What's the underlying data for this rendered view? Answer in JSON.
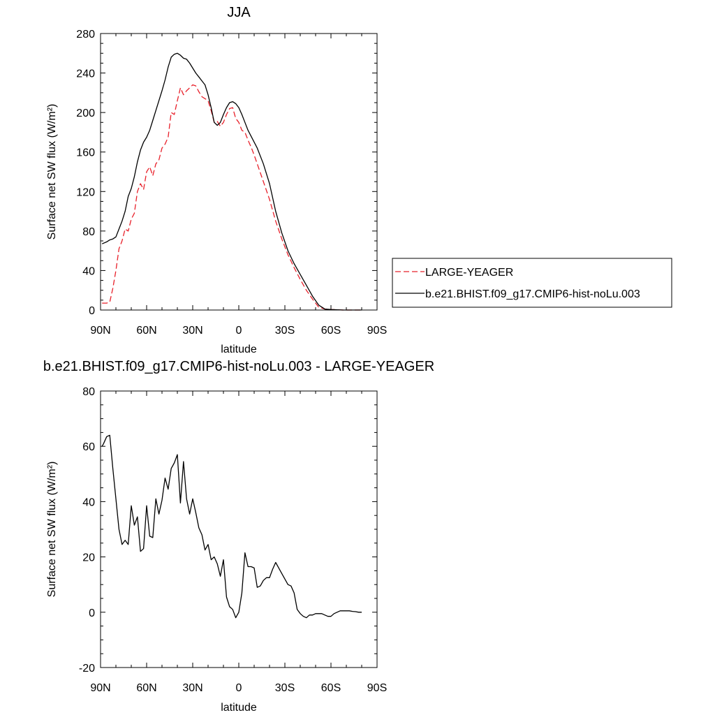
{
  "chart_data": [
    {
      "type": "line",
      "title": "JJA",
      "xlabel": "latitude",
      "ylabel": "Surface net SW flux (W/m²)",
      "xlim": [
        90,
        -90
      ],
      "ylim": [
        0,
        280
      ],
      "xticks": [
        90,
        60,
        30,
        0,
        -30,
        -60,
        -90
      ],
      "xtick_labels": [
        "90N",
        "60N",
        "30N",
        "0",
        "30S",
        "60S",
        "90S"
      ],
      "yticks": [
        0,
        40,
        80,
        120,
        160,
        200,
        240,
        280
      ],
      "ytick_labels": [
        "0",
        "40",
        "80",
        "120",
        "160",
        "200",
        "240",
        "280"
      ],
      "grid": false,
      "legend_position": "right",
      "series": [
        {
          "name": "LARGE-YEAGER",
          "color": "#e8202a",
          "dash": "dashed",
          "x": [
            89,
            86,
            84,
            82,
            80,
            78,
            76,
            74,
            72,
            70,
            68,
            66,
            64,
            62,
            60,
            58,
            56,
            54,
            52,
            50,
            48,
            46,
            44,
            42,
            40,
            38,
            36,
            34,
            32,
            30,
            28,
            26,
            24,
            22,
            20,
            18,
            16,
            14,
            12,
            10,
            8,
            6,
            4,
            2,
            0,
            -2,
            -4,
            -6,
            -8,
            -10,
            -12,
            -16,
            -20,
            -24,
            -28,
            -32,
            -36,
            -40,
            -44,
            -48,
            -52,
            -56,
            -60,
            -64,
            -68,
            -72,
            -76,
            -80
          ],
          "y": [
            7,
            7,
            8,
            22,
            40,
            62,
            70,
            82,
            80,
            92,
            98,
            120,
            128,
            122,
            140,
            145,
            136,
            148,
            152,
            164,
            168,
            175,
            200,
            198,
            212,
            225,
            218,
            222,
            225,
            228,
            227,
            221,
            216,
            214,
            212,
            202,
            190,
            191,
            186,
            190,
            198,
            204,
            205,
            194,
            190,
            182,
            180,
            172,
            165,
            157,
            148,
            130,
            112,
            90,
            72,
            56,
            43,
            31,
            20,
            11,
            3,
            1,
            0.5,
            0.2,
            0,
            0,
            0,
            0
          ]
        },
        {
          "name": "b.e21.BHIST.f09_g17.CMIP6-hist-noLu.003",
          "color": "#000000",
          "dash": "solid",
          "x": [
            89,
            86,
            84,
            82,
            80,
            78,
            76,
            74,
            72,
            70,
            68,
            66,
            64,
            62,
            60,
            58,
            56,
            54,
            52,
            50,
            48,
            46,
            44,
            42,
            40,
            38,
            36,
            34,
            32,
            30,
            28,
            26,
            24,
            22,
            20,
            18,
            16,
            14,
            12,
            10,
            8,
            6,
            4,
            2,
            0,
            -2,
            -4,
            -6,
            -8,
            -10,
            -12,
            -16,
            -20,
            -24,
            -28,
            -32,
            -36,
            -40,
            -44,
            -48,
            -52,
            -56,
            -60,
            -64,
            -68,
            -72,
            -76,
            -80
          ],
          "y": [
            67,
            69,
            71,
            72,
            74,
            82,
            90,
            100,
            115,
            123,
            135,
            150,
            162,
            170,
            175,
            182,
            192,
            202,
            212,
            222,
            233,
            246,
            256,
            259,
            260,
            258,
            255,
            254,
            250,
            245,
            240,
            236,
            232,
            228,
            218,
            205,
            190,
            187,
            190,
            198,
            205,
            210,
            211,
            209,
            205,
            198,
            190,
            182,
            176,
            170,
            164,
            148,
            128,
            100,
            78,
            60,
            47,
            36,
            25,
            14,
            5,
            1,
            0.5,
            0.2,
            0,
            0,
            0,
            0
          ]
        }
      ]
    },
    {
      "type": "line",
      "title": "b.e21.BHIST.f09_g17.CMIP6-hist-noLu.003 - LARGE-YEAGER",
      "xlabel": "latitude",
      "ylabel": "Surface net SW flux (W/m²)",
      "xlim": [
        90,
        -90
      ],
      "ylim": [
        -20,
        80
      ],
      "xticks": [
        90,
        60,
        30,
        0,
        -30,
        -60,
        -90
      ],
      "xtick_labels": [
        "90N",
        "60N",
        "30N",
        "0",
        "30S",
        "60S",
        "90S"
      ],
      "yticks": [
        -20,
        0,
        20,
        40,
        60,
        80
      ],
      "ytick_labels": [
        "-20",
        "0",
        "20",
        "40",
        "60",
        "80"
      ],
      "grid": false,
      "series": [
        {
          "color": "#000000",
          "dash": "solid",
          "x": [
            89,
            88,
            86,
            84,
            82,
            80,
            78,
            76,
            74,
            72,
            70,
            68,
            66,
            64,
            62,
            60,
            58,
            56,
            54,
            52,
            50,
            48,
            46,
            44,
            42,
            40,
            38,
            36,
            34,
            32,
            30,
            28,
            26,
            24,
            22,
            20,
            18,
            16,
            14,
            12,
            10,
            8,
            6,
            4,
            2,
            0,
            -2,
            -4,
            -6,
            -8,
            -10,
            -12,
            -14,
            -16,
            -18,
            -20,
            -22,
            -24,
            -26,
            -28,
            -30,
            -32,
            -34,
            -36,
            -38,
            -40,
            -42,
            -44,
            -46,
            -48,
            -50,
            -52,
            -54,
            -56,
            -58,
            -60,
            -62,
            -64,
            -66,
            -68,
            -70,
            -72,
            -74,
            -76,
            -78,
            -80
          ],
          "y": [
            60,
            61,
            63.5,
            64,
            52,
            41,
            30,
            24.5,
            26,
            24.5,
            38.5,
            31.5,
            34.5,
            22,
            23,
            38.5,
            27.5,
            27,
            41,
            35.5,
            40.5,
            48.5,
            44.5,
            52,
            54,
            57,
            39.5,
            54.5,
            41,
            35.5,
            41,
            36,
            30.5,
            28,
            22.5,
            24.5,
            19,
            20,
            17.5,
            13,
            19,
            5.5,
            2,
            1,
            -2,
            0,
            7,
            21.5,
            16.5,
            16.5,
            16,
            9,
            9.5,
            11.5,
            12.5,
            12.5,
            15.5,
            18,
            16,
            14,
            12,
            10,
            9.5,
            7,
            1,
            -0.5,
            -1.5,
            -2,
            -1,
            -1,
            -0.5,
            -0.5,
            -0.5,
            -1,
            -1.5,
            -1.5,
            -0.5,
            0,
            0.5,
            0.5,
            0.5,
            0.5,
            0.3,
            0.2,
            0,
            0
          ]
        }
      ]
    }
  ]
}
